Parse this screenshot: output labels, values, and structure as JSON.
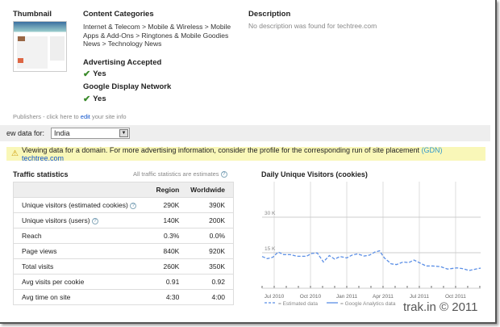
{
  "thumbnail": {
    "heading": "Thumbnail"
  },
  "content_categories": {
    "heading": "Content Categories",
    "lines": [
      "Internet & Telecom > Mobile & Wireless > Mobile",
      "Apps & Add-Ons > Ringtones & Mobile Goodies",
      "News > Technology News"
    ]
  },
  "advertising": {
    "heading": "Advertising Accepted",
    "value": "Yes"
  },
  "gdn": {
    "heading": "Google Display Network",
    "value": "Yes"
  },
  "description": {
    "heading": "Description",
    "text": "No description was found for techtree.com"
  },
  "publishers": {
    "prefix": "Publishers - click here to ",
    "link": "edit",
    "suffix": " your site info"
  },
  "view_data": {
    "label": "ew data for:",
    "selected": "India"
  },
  "notice": {
    "text": "Viewing data for a domain. For more advertising information, consider the profile for the corresponding run of site placement ",
    "gdn_link": "(GDN)",
    "site_link": "techtree.com"
  },
  "traffic": {
    "heading": "Traffic statistics",
    "note": "All traffic statistics are estimates",
    "columns": [
      "",
      "Region",
      "Worldwide"
    ],
    "rows": [
      [
        "Unique visitors (estimated cookies)",
        "290K",
        "390K",
        true
      ],
      [
        "Unique visitors (users)",
        "140K",
        "200K",
        true
      ],
      [
        "Reach",
        "0.3%",
        "0.0%",
        false
      ],
      [
        "Page views",
        "840K",
        "920K",
        false
      ],
      [
        "Total visits",
        "260K",
        "350K",
        false
      ],
      [
        "Avg visits per cookie",
        "0.91",
        "0.92",
        false
      ],
      [
        "Avg time on site",
        "4:30",
        "4:00",
        false
      ]
    ]
  },
  "chart_data": {
    "type": "line",
    "title": "Daily Unique Visitors (cookies)",
    "xlabel": "",
    "ylabel": "",
    "ylim": [
      0,
      45
    ],
    "yticks": [
      {
        "v": 15,
        "label": "15 K"
      },
      {
        "v": 30,
        "label": "30 K"
      }
    ],
    "xlim": [
      -1,
      17.07
    ],
    "xticks": [
      {
        "v": 0,
        "label": "Jul 2010"
      },
      {
        "v": 3,
        "label": "Oct 2010"
      },
      {
        "v": 6,
        "label": "Jan 2011"
      },
      {
        "v": 9,
        "label": "Apr 2011"
      },
      {
        "v": 12,
        "label": "Jul 2011"
      },
      {
        "v": 15,
        "label": "Oct 2011"
      }
    ],
    "legend": [
      {
        "name": "= Estimated data",
        "style": "dashed"
      },
      {
        "name": "= Google Analytics data",
        "style": "solid"
      }
    ],
    "legend_position": "bottom",
    "series": [
      {
        "name": "Estimated data",
        "color": "#5b8fe6",
        "x": [
          -1,
          -0.56,
          -0.11,
          0.33,
          0.78,
          1.33,
          1.89,
          2.67,
          3.11,
          3.56,
          4.07,
          4.56,
          5,
          5.44,
          6,
          6.44,
          6.89,
          7.44,
          7.89,
          8.33,
          8.71,
          9.11,
          9.67,
          10.11,
          10.67,
          11.11,
          11.56,
          12,
          12.56,
          13.11,
          13.78,
          14.33,
          15.11,
          15.56,
          16.11,
          16.67,
          17.07
        ],
        "y": [
          13.4,
          12.5,
          13.1,
          15.3,
          14.2,
          14.2,
          13.5,
          13.5,
          14.7,
          14.9,
          11.1,
          13.8,
          12.3,
          13.4,
          12.8,
          14.0,
          14.5,
          13.6,
          14.0,
          15.3,
          15.8,
          12.8,
          10.3,
          10.0,
          11.1,
          10.8,
          11.9,
          10.8,
          9.4,
          9.4,
          9.1,
          8.1,
          8.6,
          8.3,
          7.5,
          8.1,
          8.5
        ]
      }
    ]
  },
  "watermark": "trak.in © 2011"
}
